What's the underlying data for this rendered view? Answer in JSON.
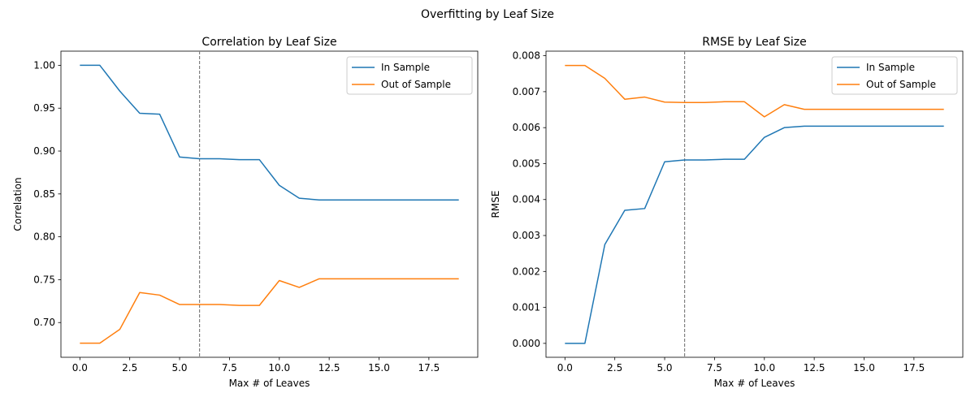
{
  "figure": {
    "suptitle": "Overfitting by Leaf Size"
  },
  "colors": {
    "in_sample": "#1f77b4",
    "out_of_sample": "#ff7f0e",
    "vline": "#808080",
    "axes": "#000000"
  },
  "chart_data": [
    {
      "type": "line",
      "title": "Correlation by Leaf Size",
      "xlabel": "Max # of Leaves",
      "ylabel": "Correlation",
      "xlim": [
        -0.95,
        19.95
      ],
      "ylim": [
        0.6595,
        1.0165
      ],
      "xticks": [
        0.0,
        2.5,
        5.0,
        7.5,
        10.0,
        12.5,
        15.0,
        17.5
      ],
      "xtick_labels": [
        "0.0",
        "2.5",
        "5.0",
        "7.5",
        "10.0",
        "12.5",
        "15.0",
        "17.5"
      ],
      "yticks": [
        0.7,
        0.75,
        0.8,
        0.85,
        0.9,
        0.95,
        1.0
      ],
      "ytick_labels": [
        "0.70",
        "0.75",
        "0.80",
        "0.85",
        "0.90",
        "0.95",
        "1.00"
      ],
      "grid": false,
      "legend": "top-right",
      "vline_x": 6,
      "x": [
        0,
        1,
        2,
        3,
        4,
        5,
        6,
        7,
        8,
        9,
        10,
        11,
        12,
        13,
        14,
        15,
        16,
        17,
        18,
        19
      ],
      "series": [
        {
          "name": "In Sample",
          "values": [
            1.0,
            1.0,
            0.97,
            0.944,
            0.943,
            0.893,
            0.891,
            0.891,
            0.89,
            0.89,
            0.86,
            0.845,
            0.843,
            0.843,
            0.843,
            0.843,
            0.843,
            0.843,
            0.843,
            0.843
          ]
        },
        {
          "name": "Out of Sample",
          "values": [
            0.676,
            0.676,
            0.692,
            0.735,
            0.732,
            0.721,
            0.721,
            0.721,
            0.72,
            0.72,
            0.749,
            0.741,
            0.751,
            0.751,
            0.751,
            0.751,
            0.751,
            0.751,
            0.751,
            0.751
          ]
        }
      ]
    },
    {
      "type": "line",
      "title": "RMSE by Leaf Size",
      "xlabel": "Max # of Leaves",
      "ylabel": "RMSE",
      "xlim": [
        -0.95,
        19.95
      ],
      "ylim": [
        -0.000387,
        0.008127
      ],
      "xticks": [
        0.0,
        2.5,
        5.0,
        7.5,
        10.0,
        12.5,
        15.0,
        17.5
      ],
      "xtick_labels": [
        "0.0",
        "2.5",
        "5.0",
        "7.5",
        "10.0",
        "12.5",
        "15.0",
        "17.5"
      ],
      "yticks": [
        0.0,
        0.001,
        0.002,
        0.003,
        0.004,
        0.005,
        0.006,
        0.007,
        0.008
      ],
      "ytick_labels": [
        "0.000",
        "0.001",
        "0.002",
        "0.003",
        "0.004",
        "0.005",
        "0.006",
        "0.007",
        "0.008"
      ],
      "grid": false,
      "legend": "top-right",
      "vline_x": 6,
      "x": [
        0,
        1,
        2,
        3,
        4,
        5,
        6,
        7,
        8,
        9,
        10,
        11,
        12,
        13,
        14,
        15,
        16,
        17,
        18,
        19
      ],
      "series": [
        {
          "name": "In Sample",
          "values": [
            0.0,
            0.0,
            0.00275,
            0.0037,
            0.00375,
            0.00505,
            0.0051,
            0.0051,
            0.00512,
            0.00512,
            0.00573,
            0.006,
            0.00604,
            0.00604,
            0.00604,
            0.00604,
            0.00604,
            0.00604,
            0.00604,
            0.00604
          ]
        },
        {
          "name": "Out of Sample",
          "values": [
            0.00773,
            0.00773,
            0.00737,
            0.00679,
            0.00685,
            0.00671,
            0.0067,
            0.0067,
            0.00672,
            0.00672,
            0.0063,
            0.00664,
            0.00651,
            0.00651,
            0.00651,
            0.00651,
            0.00651,
            0.00651,
            0.00651,
            0.00651
          ]
        }
      ]
    }
  ]
}
